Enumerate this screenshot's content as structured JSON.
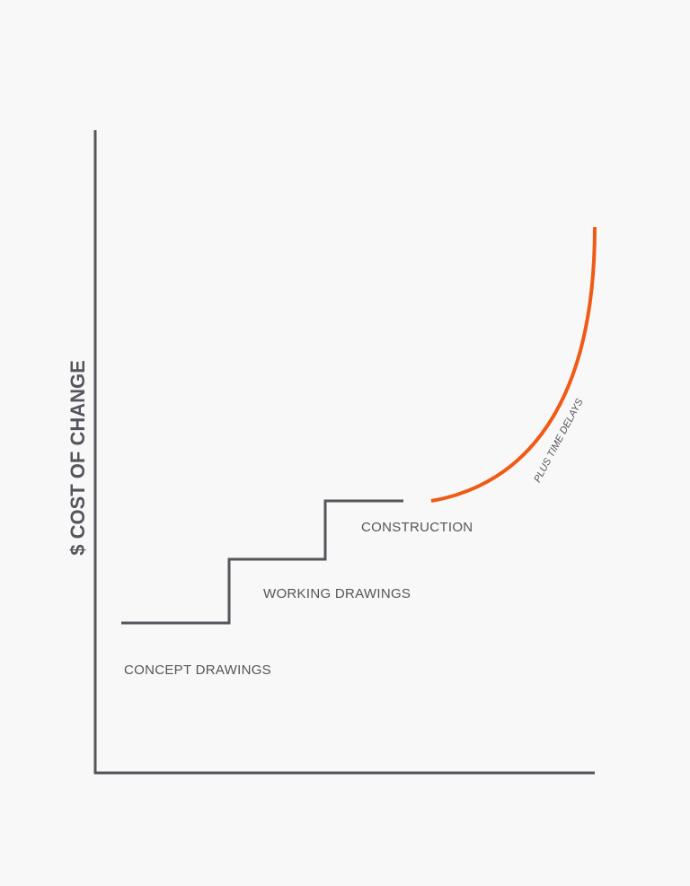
{
  "axis_label": "$ COST OF CHANGE",
  "stages": [
    "CONCEPT DRAWINGS",
    "WORKING DRAWINGS",
    "CONSTRUCTION"
  ],
  "curve_label": "PLUS TIME DELAYS"
}
